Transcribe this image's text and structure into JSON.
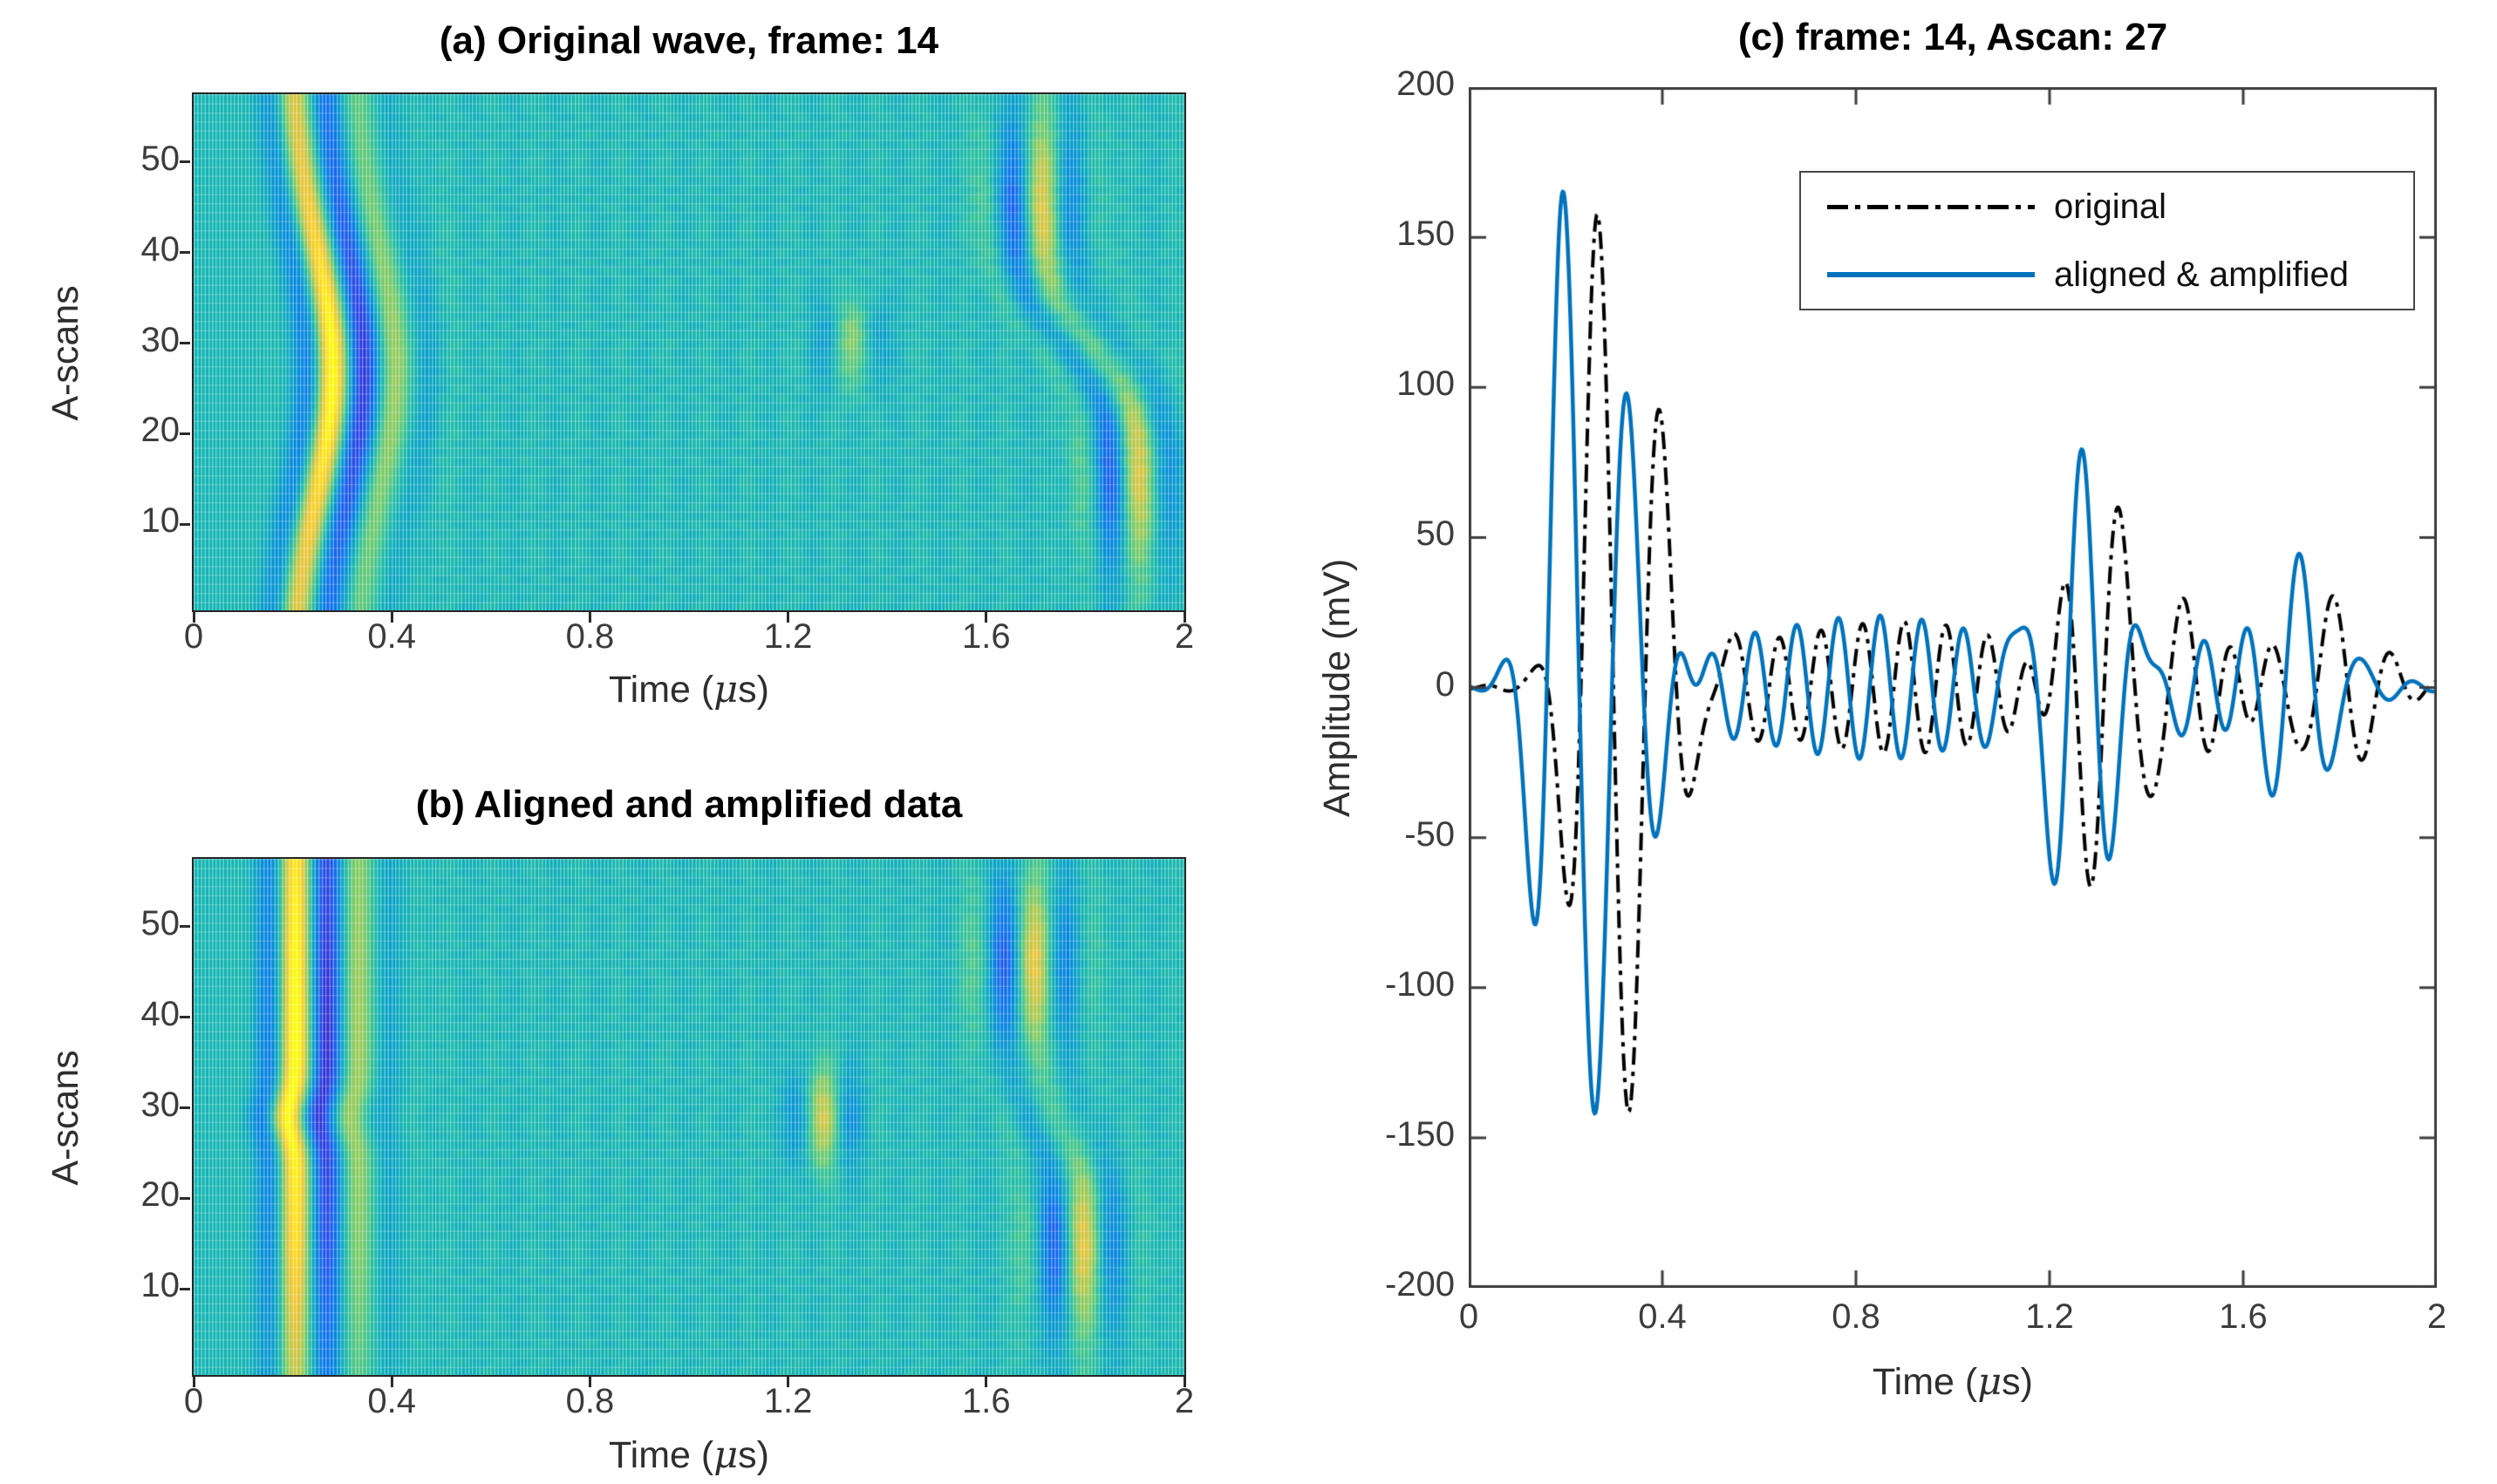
{
  "figure": {
    "background": "#ffffff",
    "title_color": "#000000",
    "tick_color": "#3c3c3c",
    "axis_color": "#3f3f3f",
    "accent_blue": "#0072BD",
    "colormap_name": "parula"
  },
  "panels": {
    "a": {
      "title": "(a) Original wave, frame: 14",
      "ylabel": "A-scans",
      "xlabel_pre": "Time (",
      "xlabel_mu": "μ",
      "xlabel_post": "s)",
      "xticks": [
        "0",
        "0.4",
        "0.8",
        "1.2",
        "1.6",
        "2"
      ],
      "yticks": [
        "10",
        "20",
        "30",
        "40",
        "50"
      ]
    },
    "b": {
      "title": "(b) Aligned and amplified data",
      "ylabel": "A-scans",
      "xlabel_pre": "Time (",
      "xlabel_mu": "μ",
      "xlabel_post": "s)",
      "xticks": [
        "0",
        "0.4",
        "0.8",
        "1.2",
        "1.6",
        "2"
      ],
      "yticks": [
        "10",
        "20",
        "30",
        "40",
        "50"
      ]
    },
    "c": {
      "title": "(c) frame: 14, Ascan: 27",
      "ylabel": "Amplitude (mV)",
      "xlabel_pre": "Time (",
      "xlabel_mu": "μ",
      "xlabel_post": "s)",
      "xticks": [
        "0",
        "0.4",
        "0.8",
        "1.2",
        "1.6",
        "2"
      ],
      "yticks": [
        "200",
        "150",
        "100",
        "50",
        "0",
        "-50",
        "-100",
        "-150",
        "-200"
      ],
      "legend": [
        {
          "label": "original",
          "style": "dash-dot",
          "color": "#000000"
        },
        {
          "label": "aligned & amplified",
          "style": "solid",
          "color": "#0072BD"
        }
      ]
    }
  },
  "parula_stops": [
    [
      0.0,
      62,
      38,
      168
    ],
    [
      0.05,
      57,
      40,
      192
    ],
    [
      0.1,
      47,
      63,
      224
    ],
    [
      0.15,
      39,
      84,
      235
    ],
    [
      0.2,
      28,
      101,
      238
    ],
    [
      0.25,
      17,
      117,
      236
    ],
    [
      0.3,
      8,
      132,
      227
    ],
    [
      0.35,
      7,
      145,
      215
    ],
    [
      0.4,
      9,
      158,
      204
    ],
    [
      0.45,
      13,
      169,
      192
    ],
    [
      0.5,
      22,
      181,
      180
    ],
    [
      0.55,
      38,
      190,
      164
    ],
    [
      0.6,
      66,
      197,
      143
    ],
    [
      0.65,
      102,
      202,
      118
    ],
    [
      0.7,
      139,
      203,
      96
    ],
    [
      0.75,
      174,
      202,
      81
    ],
    [
      0.8,
      207,
      198,
      69
    ],
    [
      0.85,
      234,
      197,
      58
    ],
    [
      0.9,
      250,
      208,
      44
    ],
    [
      0.95,
      254,
      229,
      29
    ],
    [
      1.0,
      249,
      251,
      14
    ]
  ],
  "chart_data": [
    {
      "type": "heatmap",
      "panel": "a",
      "title": "(a) Original wave, frame: 14",
      "xlabel": "Time (μs)",
      "ylabel": "A-scans",
      "x_range": [
        0,
        2
      ],
      "y_range": [
        1,
        57
      ],
      "xticks": [
        0,
        0.4,
        0.8,
        1.2,
        1.6,
        2
      ],
      "yticks": [
        10,
        20,
        30,
        40,
        50
      ],
      "n_rows": 57,
      "n_cols": 240,
      "colormap": "parula",
      "value_range_mV": [
        -210,
        210
      ],
      "description": "57 ultrasonic A-scans vs time; first-arrival wave packet bows from ~0.2 us at edge rows to ~0.3 us at middle rows; back echo forms S-curve near 1.68-1.88 us (earlier for upper rows, later for lower rows); faint defect blob near t=1.33 us, row 30; teal background = 0 mV, yellow = positive, dark blue/purple = negative",
      "model": {
        "scale": 420,
        "event1": {
          "c0": 0.195,
          "bow_amp": 0.085,
          "bow_center": 27,
          "bow_width": 20,
          "sl": 0.045,
          "sr": 0.1,
          "f": 7.5,
          "amp_base": 130,
          "amp_bump": 85,
          "amp_center": 27,
          "amp_width": 18
        },
        "event2": {
          "c0": 1.78,
          "s_shift": -0.1,
          "s_center": 30,
          "s_width": 6,
          "sl": 0.06,
          "sr": 0.08,
          "f": 7.5,
          "amp_base": 18,
          "amp_lobes": [
            {
              "r": 45,
              "w": 10,
              "a": 125
            },
            {
              "r": 16,
              "w": 10,
              "a": 125
            }
          ]
        },
        "blob": {
          "t": 1.33,
          "r": 30,
          "st": 0.05,
          "srows": 3.5,
          "a": 85,
          "f": 7.5
        },
        "ripple": {
          "a": 14,
          "f": 11.6
        }
      }
    },
    {
      "type": "heatmap",
      "panel": "b",
      "title": "(b) Aligned and amplified data",
      "xlabel": "Time (μs)",
      "ylabel": "A-scans",
      "x_range": [
        0,
        2
      ],
      "y_range": [
        1,
        57
      ],
      "xticks": [
        0,
        0.4,
        0.8,
        1.2,
        1.6,
        2
      ],
      "yticks": [
        10,
        20,
        30,
        40,
        50
      ],
      "n_rows": 57,
      "n_cols": 240,
      "colormap": "parula",
      "value_range_mV": [
        -210,
        210
      ],
      "description": "Same data after alignment and amplification: first-arrival band is a straight vertical stripe near 0.2-0.33 us for all rows; back echo nearly vertical near 1.65-1.78 us, strong at upper and lower row groups, faint near middle rows; clearer defect blob near t=1.27 us, row 29",
      "model": {
        "scale": 420,
        "event1": {
          "c0": 0.205,
          "jitter_r": 29,
          "jitter_w": 3,
          "jitter_dx": -0.015,
          "sl": 0.045,
          "sr": 0.1,
          "f": 7.5,
          "amp_base": 165,
          "amp_bump": 60,
          "amp_center": 38,
          "amp_width": 22,
          "fade_rows": 14,
          "fade_min": 0.7
        },
        "event2": {
          "c0": 1.715,
          "s_shift": -0.05,
          "s_center": 29,
          "s_width": 5,
          "sl": 0.06,
          "sr": 0.08,
          "f": 7.5,
          "amp_base": 20,
          "amp_lobes": [
            {
              "r": 46,
              "w": 9,
              "a": 140
            },
            {
              "r": 15,
              "w": 9,
              "a": 130
            }
          ]
        },
        "blob": {
          "t": 1.27,
          "r": 29,
          "st": 0.05,
          "srows": 4,
          "a": 130,
          "f": 7.5
        },
        "ripple": {
          "a": 13,
          "f": 11.6
        }
      }
    },
    {
      "type": "line",
      "panel": "c",
      "title": "(c) frame: 14, Ascan: 27",
      "xlabel": "Time (μs)",
      "ylabel": "Amplitude (mV)",
      "xlim": [
        0,
        2
      ],
      "ylim": [
        -200,
        200
      ],
      "xticks": [
        0,
        0.4,
        0.8,
        1.2,
        1.6,
        2
      ],
      "yticks": [
        -200,
        -150,
        -100,
        -50,
        0,
        50,
        100,
        150,
        200
      ],
      "grid": false,
      "legend_position": "top-right",
      "series": [
        {
          "name": "original",
          "color": "#000000",
          "line_style": "dash-dot",
          "line_width": 4,
          "events": [
            {
              "c": 0.265,
              "sl": 0.05,
              "sr": 0.12,
              "a": 160,
              "f": 7.5,
              "carrier": "cos"
            },
            {
              "c": 0.9,
              "sl": 0.33,
              "sr": 0.25,
              "a": 22,
              "f": 11.6,
              "carrier": "cos"
            },
            {
              "c": 1.315,
              "sl": 0.07,
              "sr": 0.11,
              "a": 64,
              "f": 8.0,
              "carrier": "sin"
            },
            {
              "c": 1.785,
              "sl": 0.06,
              "sr": 0.07,
              "a": 38,
              "f": 8.5,
              "carrier": "cos"
            },
            {
              "c": 1.57,
              "sl": 0.2,
              "sr": 0.22,
              "a": 12,
              "f": 11.6,
              "carrier": "cos"
            }
          ],
          "key_points": [
            {
              "t": 0.27,
              "mV": 160
            },
            {
              "t": 0.33,
              "mV": -150
            },
            {
              "t": 0.4,
              "mV": 75
            },
            {
              "t": 1.29,
              "mV": -65
            },
            {
              "t": 1.35,
              "mV": 57
            },
            {
              "t": 1.79,
              "mV": 38
            }
          ]
        },
        {
          "name": "aligned & amplified",
          "color": "#0072BD",
          "line_style": "solid",
          "line_width": 4.5,
          "events": [
            {
              "c": 0.195,
              "sl": 0.05,
              "sr": 0.12,
              "a": 168,
              "f": 7.5,
              "carrier": "cos"
            },
            {
              "c": 0.85,
              "sl": 0.33,
              "sr": 0.25,
              "a": 24,
              "f": 11.6,
              "carrier": "cos"
            },
            {
              "c": 1.235,
              "sl": 0.07,
              "sr": 0.11,
              "a": 74,
              "f": 8.0,
              "carrier": "sin"
            },
            {
              "c": 1.72,
              "sl": 0.06,
              "sr": 0.07,
              "a": 47,
              "f": 8.5,
              "carrier": "cos"
            },
            {
              "c": 1.52,
              "sl": 0.2,
              "sr": 0.22,
              "a": 13,
              "f": 11.6,
              "carrier": "cos"
            }
          ],
          "key_points": [
            {
              "t": 0.19,
              "mV": 165
            },
            {
              "t": 0.26,
              "mV": -155
            },
            {
              "t": 0.32,
              "mV": 82
            },
            {
              "t": 1.2,
              "mV": -73
            },
            {
              "t": 1.27,
              "mV": 68
            },
            {
              "t": 1.72,
              "mV": 47
            }
          ]
        }
      ],
      "note": "mid-region oscillations of both traces are roughly antiphase, amplitude about 20-25 mV, period about 0.085 us"
    }
  ]
}
